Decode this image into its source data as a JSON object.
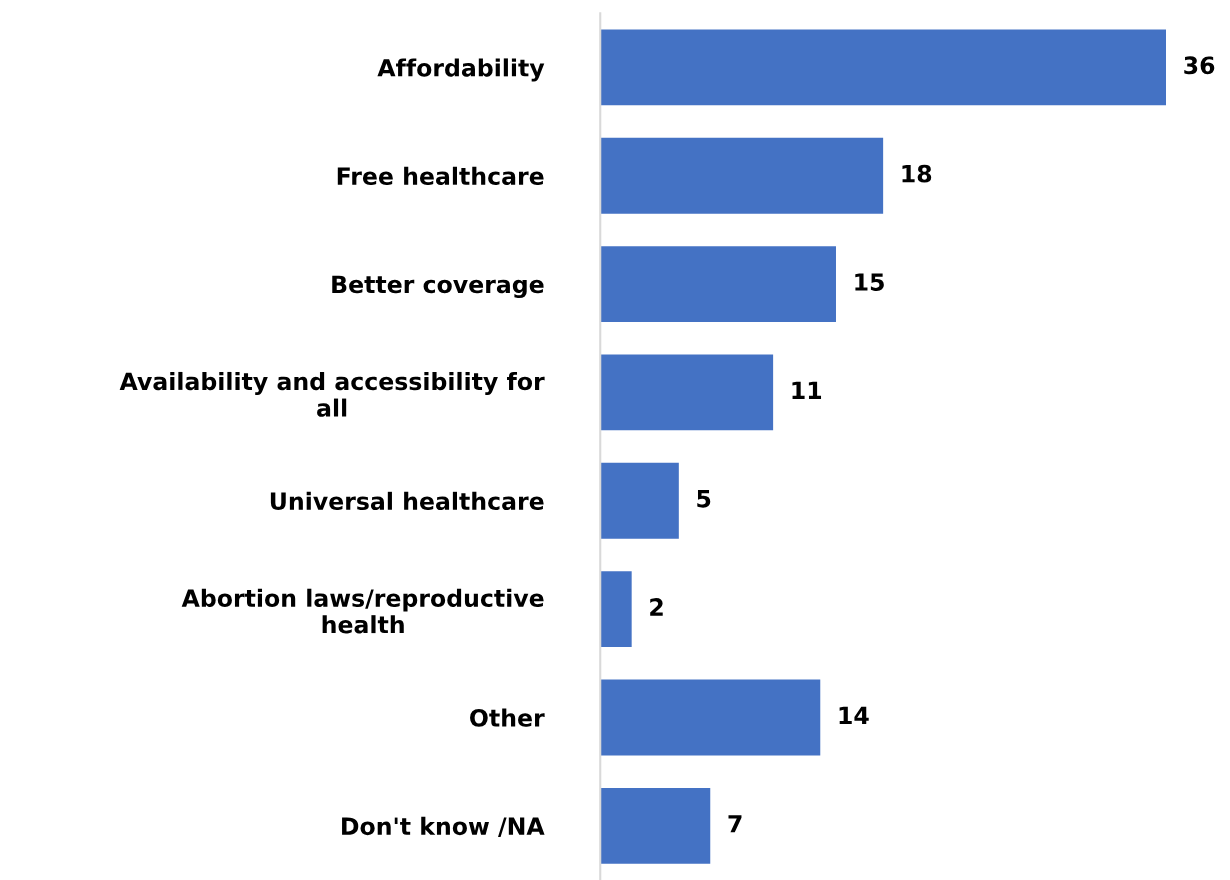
{
  "chart_data": {
    "type": "bar",
    "orientation": "horizontal",
    "categories": [
      "Affordability",
      "Free healthcare",
      "Better coverage",
      "Availability and accessibility for\nall",
      "Universal healthcare",
      "Abortion laws/reproductive\nhealth",
      "Other",
      "Don't know /NA"
    ],
    "values": [
      36,
      18,
      15,
      11,
      5,
      2,
      14,
      7
    ],
    "color": "#4472c4",
    "tick_labels": "y",
    "data_labels": true,
    "grid": false,
    "legend": false
  }
}
